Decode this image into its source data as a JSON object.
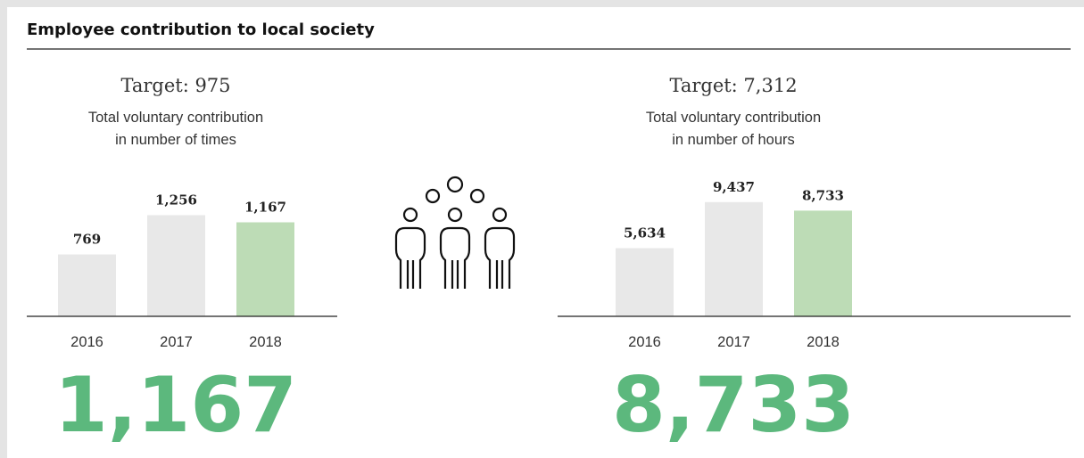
{
  "title": "Employee contribution to local society",
  "chart_data": [
    {
      "type": "bar",
      "title": "Target: 975",
      "subtitle": [
        "Total voluntary contribution",
        "in number of times"
      ],
      "categories": [
        "2016",
        "2017",
        "2018"
      ],
      "values": [
        769,
        1256,
        1167
      ],
      "value_labels": [
        "769",
        "1,256",
        "1,167"
      ],
      "colors": [
        "#e8e8e8",
        "#e8e8e8",
        "#bddcb6"
      ],
      "ylim": [
        0,
        1770
      ],
      "headline": "1,167",
      "headline_color": "#5cb87d"
    },
    {
      "type": "bar",
      "title": "Target: 7,312",
      "subtitle": [
        "Total voluntary contribution",
        "in number of hours"
      ],
      "categories": [
        "2016",
        "2017",
        "2018"
      ],
      "values": [
        5634,
        9437,
        8733
      ],
      "value_labels": [
        "5,634",
        "9,437",
        "8,733"
      ],
      "colors": [
        "#e8e8e8",
        "#e8e8e8",
        "#bddcb6"
      ],
      "ylim": [
        0,
        11780
      ],
      "headline": "8,733",
      "headline_color": "#5cb87d"
    }
  ]
}
